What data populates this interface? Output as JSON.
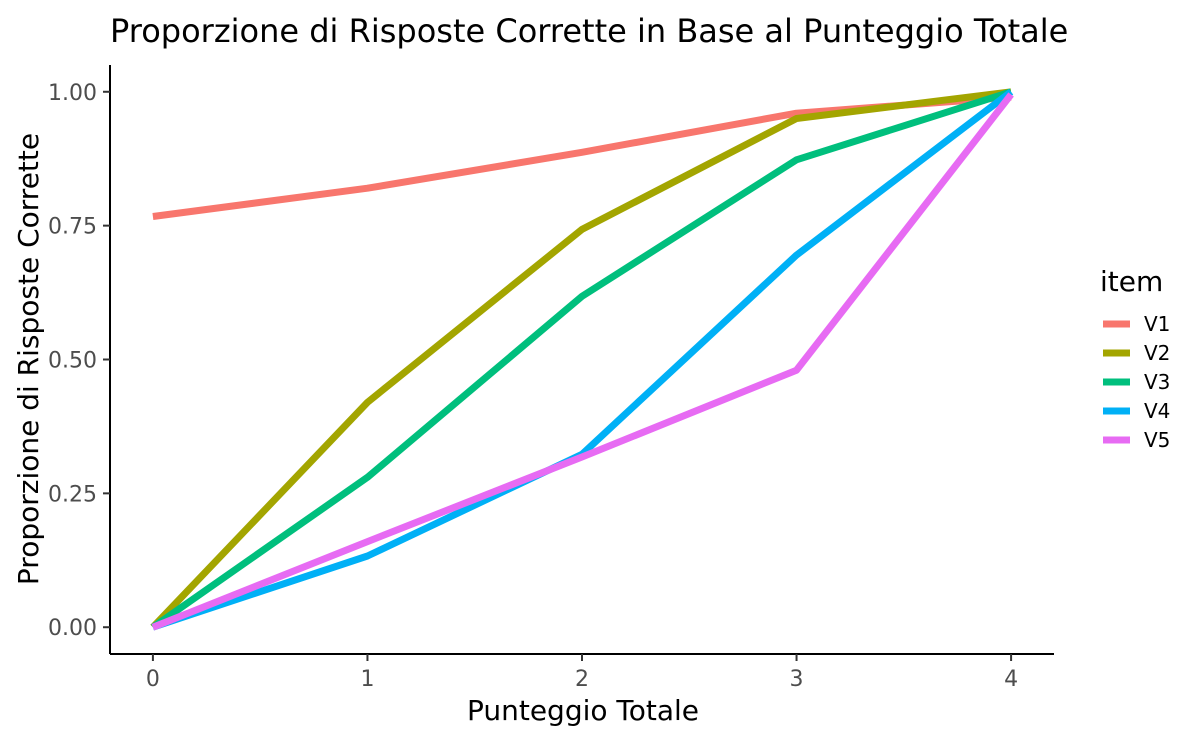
{
  "chart_data": {
    "type": "line",
    "title": "Proporzione di Risposte Corrette in Base al Punteggio Totale",
    "xlabel": "Punteggio Totale",
    "ylabel": "Proporzione di Risposte Corrette",
    "x": [
      0,
      1,
      2,
      3,
      4
    ],
    "xlim": [
      -0.2,
      4.2
    ],
    "ylim": [
      -0.05,
      1.05
    ],
    "x_ticks": [
      "0",
      "1",
      "2",
      "3",
      "4"
    ],
    "y_ticks": [
      "0.00",
      "0.25",
      "0.50",
      "0.75",
      "1.00"
    ],
    "grid": false,
    "legend": {
      "title": "item",
      "placement": "right"
    },
    "series": [
      {
        "name": "V1",
        "color": "#F8766D",
        "values": [
          0.767,
          0.82,
          0.887,
          0.96,
          0.99
        ]
      },
      {
        "name": "V2",
        "color": "#A3A500",
        "values": [
          0.0,
          0.42,
          0.743,
          0.95,
          1.0
        ]
      },
      {
        "name": "V3",
        "color": "#00BF7D",
        "values": [
          0.0,
          0.28,
          0.618,
          0.873,
          1.0
        ]
      },
      {
        "name": "V4",
        "color": "#00B0F6",
        "values": [
          0.0,
          0.133,
          0.323,
          0.695,
          1.0
        ]
      },
      {
        "name": "V5",
        "color": "#E76BF3",
        "values": [
          0.0,
          0.16,
          0.318,
          0.48,
          0.995
        ]
      }
    ]
  }
}
